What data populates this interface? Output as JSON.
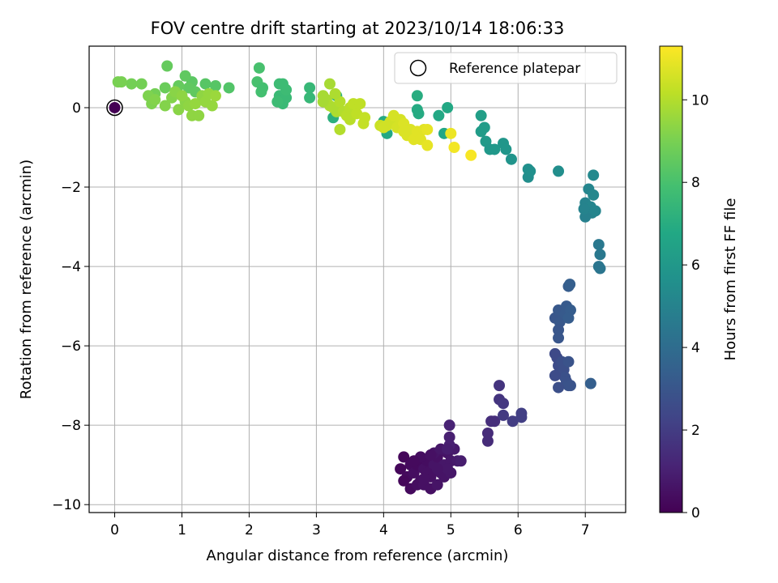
{
  "chart_data": {
    "type": "scatter",
    "title": "FOV centre drift starting at 2023/10/14 18:06:33",
    "xlabel": "Angular distance from reference (arcmin)",
    "ylabel": "Rotation from reference (arcmin)",
    "xlim": [
      -0.38,
      7.6
    ],
    "ylim": [
      -10.2,
      1.55
    ],
    "x_ticks": [
      0,
      1,
      2,
      3,
      4,
      5,
      6,
      7
    ],
    "y_ticks": [
      0,
      -2,
      -4,
      -6,
      -8,
      -10
    ],
    "x_tick_labels": [
      "0",
      "1",
      "2",
      "3",
      "4",
      "5",
      "6",
      "7"
    ],
    "y_tick_labels": [
      "0",
      "−2",
      "−4",
      "−6",
      "−8",
      "−10"
    ],
    "grid": true,
    "legend": {
      "position": "top-right",
      "entries": [
        "Reference platepar"
      ]
    },
    "colorbar": {
      "label": "Hours from first FF file",
      "colormap": "viridis",
      "range": [
        0,
        11.3
      ],
      "ticks": [
        0,
        2,
        4,
        6,
        8,
        10
      ],
      "tick_labels": [
        "0",
        "2",
        "4",
        "6",
        "8",
        "10"
      ]
    },
    "reference_point": {
      "x": 0,
      "y": 0,
      "label": "Reference platepar"
    },
    "points": [
      {
        "x": 4.3,
        "y": -8.8,
        "t": 0.2
      },
      {
        "x": 4.4,
        "y": -9.0,
        "t": 0.3
      },
      {
        "x": 4.25,
        "y": -9.1,
        "t": 0.2
      },
      {
        "x": 4.35,
        "y": -9.3,
        "t": 0.3
      },
      {
        "x": 4.45,
        "y": -9.2,
        "t": 0.4
      },
      {
        "x": 4.5,
        "y": -9.0,
        "t": 0.3
      },
      {
        "x": 4.55,
        "y": -9.4,
        "t": 0.4
      },
      {
        "x": 4.6,
        "y": -9.1,
        "t": 0.5
      },
      {
        "x": 4.65,
        "y": -8.9,
        "t": 0.4
      },
      {
        "x": 4.7,
        "y": -9.3,
        "t": 0.5
      },
      {
        "x": 4.75,
        "y": -9.0,
        "t": 0.6
      },
      {
        "x": 4.8,
        "y": -8.8,
        "t": 0.5
      },
      {
        "x": 4.85,
        "y": -9.2,
        "t": 0.6
      },
      {
        "x": 4.9,
        "y": -9.0,
        "t": 0.7
      },
      {
        "x": 4.95,
        "y": -8.7,
        "t": 0.6
      },
      {
        "x": 5.0,
        "y": -8.9,
        "t": 0.7
      },
      {
        "x": 4.4,
        "y": -9.6,
        "t": 0.3
      },
      {
        "x": 4.5,
        "y": -9.5,
        "t": 0.4
      },
      {
        "x": 4.6,
        "y": -9.5,
        "t": 0.5
      },
      {
        "x": 4.7,
        "y": -9.6,
        "t": 0.5
      },
      {
        "x": 4.8,
        "y": -9.5,
        "t": 0.6
      },
      {
        "x": 4.3,
        "y": -9.4,
        "t": 0.2
      },
      {
        "x": 4.55,
        "y": -8.8,
        "t": 0.4
      },
      {
        "x": 4.65,
        "y": -9.2,
        "t": 0.5
      },
      {
        "x": 4.75,
        "y": -8.7,
        "t": 0.6
      },
      {
        "x": 4.85,
        "y": -8.6,
        "t": 0.7
      },
      {
        "x": 4.9,
        "y": -9.3,
        "t": 0.6
      },
      {
        "x": 5.0,
        "y": -9.2,
        "t": 0.7
      },
      {
        "x": 5.05,
        "y": -8.6,
        "t": 0.8
      },
      {
        "x": 5.1,
        "y": -8.9,
        "t": 0.8
      },
      {
        "x": 5.15,
        "y": -8.9,
        "t": 0.9
      },
      {
        "x": 4.45,
        "y": -8.9,
        "t": 0.3
      },
      {
        "x": 4.6,
        "y": -9.35,
        "t": 0.5
      },
      {
        "x": 4.95,
        "y": -9.1,
        "t": 0.7
      },
      {
        "x": 4.8,
        "y": -9.1,
        "t": 0.6
      },
      {
        "x": 4.7,
        "y": -8.75,
        "t": 0.5
      },
      {
        "x": 4.98,
        "y": -8.3,
        "t": 1.0
      },
      {
        "x": 4.98,
        "y": -8.0,
        "t": 1.1
      },
      {
        "x": 4.98,
        "y": -8.5,
        "t": 1.0
      },
      {
        "x": 4.95,
        "y": -8.6,
        "t": 0.9
      },
      {
        "x": 5.55,
        "y": -8.4,
        "t": 1.4
      },
      {
        "x": 5.55,
        "y": -8.2,
        "t": 1.4
      },
      {
        "x": 5.6,
        "y": -7.9,
        "t": 1.5
      },
      {
        "x": 5.65,
        "y": -7.9,
        "t": 1.5
      },
      {
        "x": 5.72,
        "y": -7.0,
        "t": 1.7
      },
      {
        "x": 5.72,
        "y": -7.35,
        "t": 1.7
      },
      {
        "x": 5.78,
        "y": -7.45,
        "t": 1.8
      },
      {
        "x": 5.78,
        "y": -7.75,
        "t": 1.9
      },
      {
        "x": 5.92,
        "y": -7.9,
        "t": 2.0
      },
      {
        "x": 6.05,
        "y": -7.8,
        "t": 2.1
      },
      {
        "x": 6.05,
        "y": -7.7,
        "t": 2.1
      },
      {
        "x": 6.55,
        "y": -6.2,
        "t": 2.5
      },
      {
        "x": 6.58,
        "y": -6.3,
        "t": 2.5
      },
      {
        "x": 6.6,
        "y": -6.5,
        "t": 2.6
      },
      {
        "x": 6.62,
        "y": -6.7,
        "t": 2.6
      },
      {
        "x": 6.65,
        "y": -6.4,
        "t": 2.7
      },
      {
        "x": 6.68,
        "y": -6.6,
        "t": 2.7
      },
      {
        "x": 6.7,
        "y": -6.8,
        "t": 2.8
      },
      {
        "x": 6.72,
        "y": -6.9,
        "t": 2.8
      },
      {
        "x": 6.75,
        "y": -6.4,
        "t": 2.9
      },
      {
        "x": 6.75,
        "y": -7.0,
        "t": 2.9
      },
      {
        "x": 6.6,
        "y": -7.05,
        "t": 2.7
      },
      {
        "x": 6.55,
        "y": -6.75,
        "t": 2.6
      },
      {
        "x": 6.78,
        "y": -7.0,
        "t": 2.9
      },
      {
        "x": 6.55,
        "y": -5.3,
        "t": 3.0
      },
      {
        "x": 6.6,
        "y": -5.1,
        "t": 3.1
      },
      {
        "x": 6.62,
        "y": -5.4,
        "t": 3.1
      },
      {
        "x": 6.6,
        "y": -5.6,
        "t": 3.0
      },
      {
        "x": 6.6,
        "y": -5.8,
        "t": 3.0
      },
      {
        "x": 6.7,
        "y": -5.2,
        "t": 3.2
      },
      {
        "x": 6.72,
        "y": -5.0,
        "t": 3.2
      },
      {
        "x": 6.75,
        "y": -4.5,
        "t": 3.3
      },
      {
        "x": 6.77,
        "y": -4.45,
        "t": 3.4
      },
      {
        "x": 6.78,
        "y": -5.1,
        "t": 3.3
      },
      {
        "x": 6.75,
        "y": -5.3,
        "t": 3.3
      },
      {
        "x": 7.08,
        "y": -6.95,
        "t": 3.4
      },
      {
        "x": 7.2,
        "y": -3.45,
        "t": 4.5
      },
      {
        "x": 7.22,
        "y": -3.7,
        "t": 4.5
      },
      {
        "x": 7.2,
        "y": -4.0,
        "t": 4.4
      },
      {
        "x": 7.22,
        "y": -4.05,
        "t": 4.4
      },
      {
        "x": 7.0,
        "y": -2.4,
        "t": 5.0
      },
      {
        "x": 7.02,
        "y": -2.6,
        "t": 5.0
      },
      {
        "x": 7.05,
        "y": -2.05,
        "t": 5.1
      },
      {
        "x": 7.08,
        "y": -2.5,
        "t": 5.1
      },
      {
        "x": 7.12,
        "y": -2.2,
        "t": 5.2
      },
      {
        "x": 7.12,
        "y": -1.7,
        "t": 5.3
      },
      {
        "x": 7.1,
        "y": -2.65,
        "t": 5.0
      },
      {
        "x": 7.0,
        "y": -2.75,
        "t": 4.9
      },
      {
        "x": 6.98,
        "y": -2.55,
        "t": 5.0
      },
      {
        "x": 7.15,
        "y": -2.6,
        "t": 5.1
      },
      {
        "x": 6.15,
        "y": -1.55,
        "t": 5.6
      },
      {
        "x": 6.15,
        "y": -1.75,
        "t": 5.5
      },
      {
        "x": 6.18,
        "y": -1.6,
        "t": 5.6
      },
      {
        "x": 6.6,
        "y": -1.6,
        "t": 5.5
      },
      {
        "x": 5.45,
        "y": -0.2,
        "t": 6.3
      },
      {
        "x": 5.45,
        "y": -0.6,
        "t": 6.2
      },
      {
        "x": 5.5,
        "y": -0.5,
        "t": 6.2
      },
      {
        "x": 5.52,
        "y": -0.85,
        "t": 6.1
      },
      {
        "x": 5.58,
        "y": -1.05,
        "t": 6.0
      },
      {
        "x": 5.65,
        "y": -1.05,
        "t": 6.0
      },
      {
        "x": 5.78,
        "y": -0.9,
        "t": 5.9
      },
      {
        "x": 5.82,
        "y": -1.05,
        "t": 5.9
      },
      {
        "x": 5.9,
        "y": -1.3,
        "t": 5.8
      },
      {
        "x": 4.5,
        "y": 0.3,
        "t": 7.0
      },
      {
        "x": 4.5,
        "y": -0.05,
        "t": 6.9
      },
      {
        "x": 4.52,
        "y": -0.15,
        "t": 6.9
      },
      {
        "x": 4.95,
        "y": 0.0,
        "t": 6.8
      },
      {
        "x": 4.9,
        "y": -0.65,
        "t": 6.7
      },
      {
        "x": 4.82,
        "y": -0.2,
        "t": 6.8
      },
      {
        "x": 4.0,
        "y": -0.35,
        "t": 6.9
      },
      {
        "x": 4.05,
        "y": -0.65,
        "t": 6.8
      },
      {
        "x": 3.3,
        "y": 0.3,
        "t": 7.2
      },
      {
        "x": 3.25,
        "y": -0.25,
        "t": 7.1
      },
      {
        "x": 2.9,
        "y": 0.5,
        "t": 7.5
      },
      {
        "x": 2.9,
        "y": 0.25,
        "t": 7.5
      },
      {
        "x": 2.45,
        "y": 0.3,
        "t": 7.6
      },
      {
        "x": 2.5,
        "y": 0.1,
        "t": 7.6
      },
      {
        "x": 2.55,
        "y": 0.25,
        "t": 7.6
      },
      {
        "x": 2.55,
        "y": 0.45,
        "t": 7.7
      },
      {
        "x": 2.45,
        "y": 0.6,
        "t": 7.7
      },
      {
        "x": 2.5,
        "y": 0.6,
        "t": 7.7
      },
      {
        "x": 2.42,
        "y": 0.15,
        "t": 7.7
      },
      {
        "x": 2.15,
        "y": 1.0,
        "t": 8.0
      },
      {
        "x": 2.12,
        "y": 0.65,
        "t": 8.0
      },
      {
        "x": 2.18,
        "y": 0.4,
        "t": 7.9
      },
      {
        "x": 2.2,
        "y": 0.5,
        "t": 7.9
      },
      {
        "x": 1.7,
        "y": 0.5,
        "t": 8.2
      },
      {
        "x": 1.5,
        "y": 0.55,
        "t": 8.3
      },
      {
        "x": 1.35,
        "y": 0.6,
        "t": 8.3
      },
      {
        "x": 1.15,
        "y": 0.65,
        "t": 8.4
      },
      {
        "x": 1.05,
        "y": 0.8,
        "t": 8.5
      },
      {
        "x": 1.1,
        "y": 0.5,
        "t": 8.5
      },
      {
        "x": 1.2,
        "y": 0.4,
        "t": 8.5
      },
      {
        "x": 0.95,
        "y": 0.55,
        "t": 8.6
      },
      {
        "x": 0.78,
        "y": 1.05,
        "t": 8.6
      },
      {
        "x": 0.75,
        "y": 0.5,
        "t": 8.7
      },
      {
        "x": 0.4,
        "y": 0.6,
        "t": 8.9
      },
      {
        "x": 0.25,
        "y": 0.6,
        "t": 8.9
      },
      {
        "x": 0.1,
        "y": 0.65,
        "t": 9.0
      },
      {
        "x": 0.05,
        "y": 0.65,
        "t": 9.0
      },
      {
        "x": 0.6,
        "y": 0.35,
        "t": 8.9
      },
      {
        "x": 0.5,
        "y": 0.3,
        "t": 9.1
      },
      {
        "x": 0.55,
        "y": 0.1,
        "t": 9.1
      },
      {
        "x": 0.6,
        "y": 0.2,
        "t": 9.2
      },
      {
        "x": 0.75,
        "y": 0.05,
        "t": 9.2
      },
      {
        "x": 0.85,
        "y": 0.25,
        "t": 9.2
      },
      {
        "x": 0.95,
        "y": -0.05,
        "t": 9.3
      },
      {
        "x": 1.05,
        "y": 0.15,
        "t": 9.3
      },
      {
        "x": 1.1,
        "y": 0.05,
        "t": 9.4
      },
      {
        "x": 1.15,
        "y": -0.2,
        "t": 9.4
      },
      {
        "x": 1.25,
        "y": -0.2,
        "t": 9.4
      },
      {
        "x": 1.2,
        "y": 0.1,
        "t": 9.5
      },
      {
        "x": 1.3,
        "y": 0.3,
        "t": 9.4
      },
      {
        "x": 1.35,
        "y": 0.15,
        "t": 9.5
      },
      {
        "x": 1.4,
        "y": 0.35,
        "t": 9.5
      },
      {
        "x": 1.45,
        "y": 0.05,
        "t": 9.5
      },
      {
        "x": 1.5,
        "y": 0.3,
        "t": 9.6
      },
      {
        "x": 0.9,
        "y": 0.4,
        "t": 9.3
      },
      {
        "x": 1.0,
        "y": 0.3,
        "t": 9.4
      },
      {
        "x": 3.1,
        "y": 0.3,
        "t": 9.8
      },
      {
        "x": 3.15,
        "y": 0.2,
        "t": 9.8
      },
      {
        "x": 3.2,
        "y": 0.6,
        "t": 9.8
      },
      {
        "x": 3.2,
        "y": 0.05,
        "t": 9.9
      },
      {
        "x": 3.25,
        "y": 0.0,
        "t": 9.9
      },
      {
        "x": 3.3,
        "y": -0.1,
        "t": 9.9
      },
      {
        "x": 3.35,
        "y": 0.15,
        "t": 10.0
      },
      {
        "x": 3.35,
        "y": -0.55,
        "t": 10.0
      },
      {
        "x": 3.4,
        "y": -0.1,
        "t": 10.0
      },
      {
        "x": 3.45,
        "y": -0.2,
        "t": 10.1
      },
      {
        "x": 3.5,
        "y": 0.0,
        "t": 10.1
      },
      {
        "x": 3.5,
        "y": -0.3,
        "t": 10.1
      },
      {
        "x": 3.55,
        "y": 0.1,
        "t": 10.2
      },
      {
        "x": 3.6,
        "y": -0.15,
        "t": 10.2
      },
      {
        "x": 3.65,
        "y": 0.1,
        "t": 10.2
      },
      {
        "x": 3.7,
        "y": -0.4,
        "t": 10.3
      },
      {
        "x": 3.72,
        "y": -0.25,
        "t": 10.3
      },
      {
        "x": 3.1,
        "y": 0.15,
        "t": 9.8
      },
      {
        "x": 3.28,
        "y": 0.35,
        "t": 9.9
      },
      {
        "x": 3.95,
        "y": -0.45,
        "t": 10.4
      },
      {
        "x": 4.0,
        "y": -0.5,
        "t": 10.5
      },
      {
        "x": 4.05,
        "y": -0.45,
        "t": 10.5
      },
      {
        "x": 4.1,
        "y": -0.35,
        "t": 10.5
      },
      {
        "x": 4.15,
        "y": -0.2,
        "t": 10.6
      },
      {
        "x": 4.2,
        "y": -0.5,
        "t": 10.6
      },
      {
        "x": 4.25,
        "y": -0.3,
        "t": 10.6
      },
      {
        "x": 4.3,
        "y": -0.4,
        "t": 10.7
      },
      {
        "x": 4.3,
        "y": -0.6,
        "t": 10.7
      },
      {
        "x": 4.35,
        "y": -0.7,
        "t": 10.7
      },
      {
        "x": 4.4,
        "y": -0.55,
        "t": 10.7
      },
      {
        "x": 4.45,
        "y": -0.8,
        "t": 10.8
      },
      {
        "x": 4.5,
        "y": -0.6,
        "t": 10.8
      },
      {
        "x": 4.55,
        "y": -0.8,
        "t": 10.8
      },
      {
        "x": 4.6,
        "y": -0.55,
        "t": 10.8
      },
      {
        "x": 4.65,
        "y": -0.95,
        "t": 10.9
      },
      {
        "x": 4.65,
        "y": -0.55,
        "t": 10.9
      },
      {
        "x": 5.0,
        "y": -0.65,
        "t": 11.0
      },
      {
        "x": 5.05,
        "y": -1.0,
        "t": 11.1
      },
      {
        "x": 5.3,
        "y": -1.2,
        "t": 11.2
      }
    ]
  }
}
